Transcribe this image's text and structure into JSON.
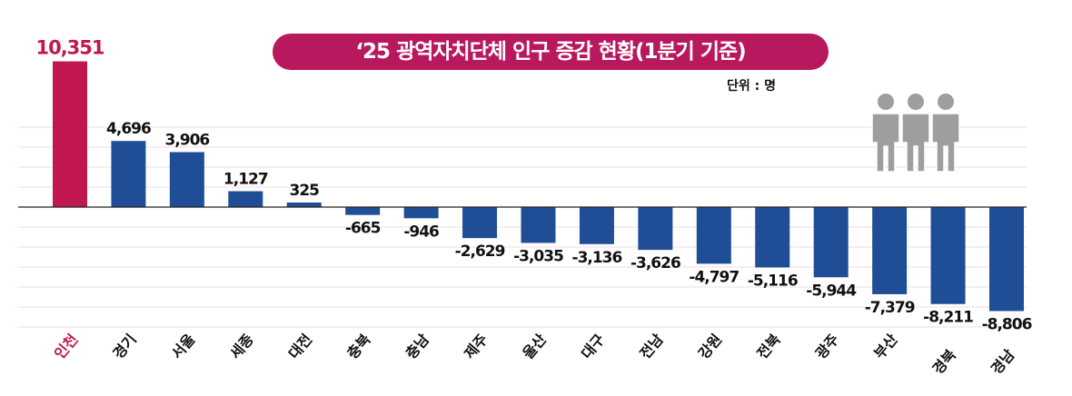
{
  "chart_data": {
    "type": "bar",
    "title": "‘25 광역자치단체 인구 증감 현황(1분기 기준)",
    "unit_label": "단위 : 명",
    "categories": [
      "인천",
      "경기",
      "서울",
      "세종",
      "대전",
      "충북",
      "충남",
      "제주",
      "울산",
      "대구",
      "전남",
      "강원",
      "전북",
      "광주",
      "부산",
      "경북",
      "경남"
    ],
    "values": [
      10351,
      4696,
      3906,
      1127,
      325,
      -665,
      -946,
      -2629,
      -3035,
      -3136,
      -3626,
      -4797,
      -5116,
      -5944,
      -7379,
      -8211,
      -8806
    ],
    "value_labels": [
      "10,351",
      "4,696",
      "3,906",
      "1,127",
      "325",
      "-665",
      "-946",
      "-2,629",
      "-3,035",
      "-3,136",
      "-3,626",
      "-4,797",
      "-5,116",
      "-5,944",
      "-7,379",
      "-8,211",
      "-8,806"
    ],
    "highlight_index": 0,
    "grid": true,
    "colors": {
      "highlight": "#c0174f",
      "bar": "#1f4e96",
      "title_bg": "#b8195e",
      "grid": "#f3dbe3",
      "icon": "#9e9e9e"
    },
    "icon": "people-icon"
  }
}
